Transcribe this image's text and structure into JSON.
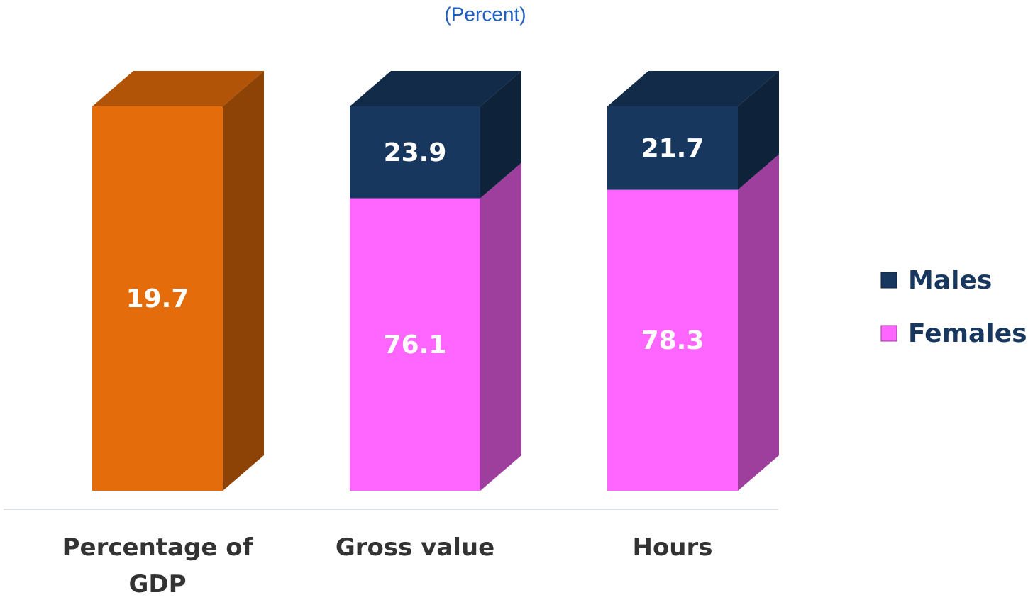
{
  "chart_data": {
    "type": "bar",
    "stacking": "percent",
    "title": "(Percent)",
    "categories": [
      "Percentage of GDP",
      "Gross value",
      "Hours"
    ],
    "series": [
      {
        "color": "#e46c0a",
        "values": [
          19.7,
          null,
          null
        ]
      },
      {
        "name": "Females",
        "color": "#ff66ff",
        "values": [
          null,
          76.1,
          78.3
        ]
      },
      {
        "name": "Males",
        "color": "#17375e",
        "values": [
          null,
          23.9,
          21.7
        ]
      }
    ],
    "legend": "right"
  }
}
